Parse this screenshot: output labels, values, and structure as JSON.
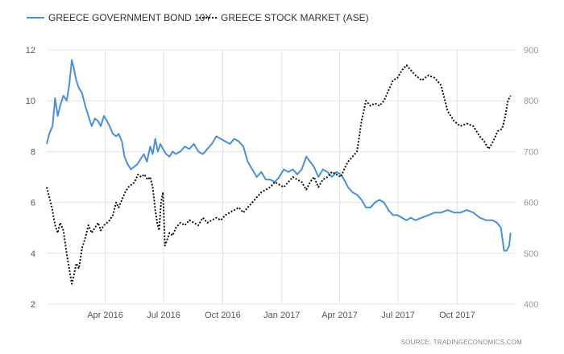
{
  "chart_data": {
    "type": "line",
    "legend_position": "top-left",
    "grid": true,
    "series": [
      {
        "name": "GREECE GOVERNMENT BOND 10Y",
        "axis": "left",
        "color": "#4a8fdc",
        "style": "solid",
        "points": [
          [
            "2016-01-01",
            8.3
          ],
          [
            "2016-01-05",
            8.7
          ],
          [
            "2016-01-10",
            9.0
          ],
          [
            "2016-01-14",
            10.1
          ],
          [
            "2016-01-18",
            9.4
          ],
          [
            "2016-01-22",
            9.8
          ],
          [
            "2016-01-27",
            10.2
          ],
          [
            "2016-02-01",
            10.0
          ],
          [
            "2016-02-05",
            10.6
          ],
          [
            "2016-02-09",
            11.6
          ],
          [
            "2016-02-12",
            11.3
          ],
          [
            "2016-02-16",
            10.8
          ],
          [
            "2016-02-20",
            10.5
          ],
          [
            "2016-02-25",
            10.3
          ],
          [
            "2016-03-01",
            9.8
          ],
          [
            "2016-03-06",
            9.4
          ],
          [
            "2016-03-11",
            9.0
          ],
          [
            "2016-03-16",
            9.3
          ],
          [
            "2016-03-21",
            9.2
          ],
          [
            "2016-03-25",
            9.0
          ],
          [
            "2016-03-30",
            9.4
          ],
          [
            "2016-04-04",
            9.2
          ],
          [
            "2016-04-08",
            9.0
          ],
          [
            "2016-04-13",
            8.7
          ],
          [
            "2016-04-18",
            8.6
          ],
          [
            "2016-04-22",
            8.7
          ],
          [
            "2016-04-27",
            8.4
          ],
          [
            "2016-05-01",
            7.8
          ],
          [
            "2016-05-06",
            7.5
          ],
          [
            "2016-05-11",
            7.3
          ],
          [
            "2016-05-16",
            7.4
          ],
          [
            "2016-05-21",
            7.5
          ],
          [
            "2016-05-26",
            7.7
          ],
          [
            "2016-05-31",
            7.9
          ],
          [
            "2016-06-05",
            7.6
          ],
          [
            "2016-06-10",
            8.2
          ],
          [
            "2016-06-14",
            7.9
          ],
          [
            "2016-06-18",
            8.5
          ],
          [
            "2016-06-22",
            8.0
          ],
          [
            "2016-06-26",
            8.3
          ],
          [
            "2016-06-30",
            8.1
          ],
          [
            "2016-07-05",
            7.9
          ],
          [
            "2016-07-10",
            7.8
          ],
          [
            "2016-07-15",
            8.0
          ],
          [
            "2016-07-20",
            7.9
          ],
          [
            "2016-07-27",
            8.0
          ],
          [
            "2016-08-03",
            8.2
          ],
          [
            "2016-08-10",
            8.1
          ],
          [
            "2016-08-17",
            8.3
          ],
          [
            "2016-08-24",
            8.0
          ],
          [
            "2016-08-31",
            7.9
          ],
          [
            "2016-09-07",
            8.1
          ],
          [
            "2016-09-14",
            8.3
          ],
          [
            "2016-09-21",
            8.6
          ],
          [
            "2016-09-28",
            8.5
          ],
          [
            "2016-10-05",
            8.4
          ],
          [
            "2016-10-12",
            8.3
          ],
          [
            "2016-10-19",
            8.5
          ],
          [
            "2016-10-26",
            8.4
          ],
          [
            "2016-11-02",
            8.2
          ],
          [
            "2016-11-09",
            7.6
          ],
          [
            "2016-11-16",
            7.3
          ],
          [
            "2016-11-23",
            7.0
          ],
          [
            "2016-11-30",
            7.2
          ],
          [
            "2016-12-07",
            6.9
          ],
          [
            "2016-12-14",
            6.9
          ],
          [
            "2016-12-21",
            6.8
          ],
          [
            "2016-12-28",
            7.0
          ],
          [
            "2017-01-04",
            7.3
          ],
          [
            "2017-01-11",
            7.2
          ],
          [
            "2017-01-18",
            7.3
          ],
          [
            "2017-01-25",
            7.1
          ],
          [
            "2017-02-01",
            7.3
          ],
          [
            "2017-02-08",
            7.8
          ],
          [
            "2017-02-14",
            7.6
          ],
          [
            "2017-02-20",
            7.4
          ],
          [
            "2017-02-27",
            7.0
          ],
          [
            "2017-03-06",
            7.3
          ],
          [
            "2017-03-13",
            7.2
          ],
          [
            "2017-03-20",
            7.0
          ],
          [
            "2017-03-27",
            7.2
          ],
          [
            "2017-04-03",
            7.1
          ],
          [
            "2017-04-08",
            6.9
          ],
          [
            "2017-04-14",
            6.6
          ],
          [
            "2017-04-21",
            6.4
          ],
          [
            "2017-04-28",
            6.3
          ],
          [
            "2017-05-05",
            6.1
          ],
          [
            "2017-05-12",
            5.8
          ],
          [
            "2017-05-19",
            5.8
          ],
          [
            "2017-05-26",
            6.0
          ],
          [
            "2017-06-02",
            6.1
          ],
          [
            "2017-06-09",
            6.0
          ],
          [
            "2017-06-16",
            5.7
          ],
          [
            "2017-06-23",
            5.5
          ],
          [
            "2017-06-30",
            5.5
          ],
          [
            "2017-07-07",
            5.4
          ],
          [
            "2017-07-14",
            5.3
          ],
          [
            "2017-07-21",
            5.4
          ],
          [
            "2017-07-28",
            5.3
          ],
          [
            "2017-08-07",
            5.4
          ],
          [
            "2017-08-17",
            5.5
          ],
          [
            "2017-08-27",
            5.6
          ],
          [
            "2017-09-06",
            5.6
          ],
          [
            "2017-09-16",
            5.7
          ],
          [
            "2017-09-26",
            5.6
          ],
          [
            "2017-10-06",
            5.6
          ],
          [
            "2017-10-16",
            5.7
          ],
          [
            "2017-10-26",
            5.6
          ],
          [
            "2017-11-05",
            5.4
          ],
          [
            "2017-11-15",
            5.3
          ],
          [
            "2017-11-25",
            5.3
          ],
          [
            "2017-12-02",
            5.2
          ],
          [
            "2017-12-08",
            5.0
          ],
          [
            "2017-12-13",
            4.1
          ],
          [
            "2017-12-17",
            4.1
          ],
          [
            "2017-12-21",
            4.3
          ],
          [
            "2017-12-23",
            4.8
          ]
        ]
      },
      {
        "name": "GREECE STOCK MARKET (ASE)",
        "axis": "right",
        "color": "#111111",
        "style": "dotted",
        "points": [
          [
            "2016-01-01",
            630
          ],
          [
            "2016-01-05",
            610
          ],
          [
            "2016-01-09",
            590
          ],
          [
            "2016-01-14",
            555
          ],
          [
            "2016-01-18",
            540
          ],
          [
            "2016-01-22",
            560
          ],
          [
            "2016-01-27",
            545
          ],
          [
            "2016-02-01",
            500
          ],
          [
            "2016-02-05",
            470
          ],
          [
            "2016-02-09",
            440
          ],
          [
            "2016-02-12",
            455
          ],
          [
            "2016-02-16",
            480
          ],
          [
            "2016-02-20",
            470
          ],
          [
            "2016-02-25",
            510
          ],
          [
            "2016-03-01",
            530
          ],
          [
            "2016-03-06",
            555
          ],
          [
            "2016-03-11",
            540
          ],
          [
            "2016-03-16",
            550
          ],
          [
            "2016-03-21",
            560
          ],
          [
            "2016-03-25",
            545
          ],
          [
            "2016-03-30",
            555
          ],
          [
            "2016-04-04",
            560
          ],
          [
            "2016-04-08",
            565
          ],
          [
            "2016-04-13",
            575
          ],
          [
            "2016-04-18",
            600
          ],
          [
            "2016-04-22",
            590
          ],
          [
            "2016-04-27",
            605
          ],
          [
            "2016-05-02",
            620
          ],
          [
            "2016-05-07",
            630
          ],
          [
            "2016-05-12",
            635
          ],
          [
            "2016-05-17",
            640
          ],
          [
            "2016-05-22",
            655
          ],
          [
            "2016-05-27",
            650
          ],
          [
            "2016-06-01",
            655
          ],
          [
            "2016-06-06",
            645
          ],
          [
            "2016-06-10",
            650
          ],
          [
            "2016-06-14",
            630
          ],
          [
            "2016-06-18",
            585
          ],
          [
            "2016-06-21",
            560
          ],
          [
            "2016-06-24",
            545
          ],
          [
            "2016-06-27",
            600
          ],
          [
            "2016-06-30",
            620
          ],
          [
            "2016-07-03",
            515
          ],
          [
            "2016-07-06",
            525
          ],
          [
            "2016-07-10",
            540
          ],
          [
            "2016-07-15",
            535
          ],
          [
            "2016-07-20",
            550
          ],
          [
            "2016-07-27",
            560
          ],
          [
            "2016-08-03",
            555
          ],
          [
            "2016-08-10",
            565
          ],
          [
            "2016-08-17",
            560
          ],
          [
            "2016-08-24",
            555
          ],
          [
            "2016-08-31",
            570
          ],
          [
            "2016-09-07",
            560
          ],
          [
            "2016-09-14",
            565
          ],
          [
            "2016-09-21",
            570
          ],
          [
            "2016-09-28",
            565
          ],
          [
            "2016-10-05",
            575
          ],
          [
            "2016-10-12",
            580
          ],
          [
            "2016-10-19",
            585
          ],
          [
            "2016-10-26",
            590
          ],
          [
            "2016-11-02",
            580
          ],
          [
            "2016-11-09",
            590
          ],
          [
            "2016-11-16",
            600
          ],
          [
            "2016-11-23",
            610
          ],
          [
            "2016-11-30",
            620
          ],
          [
            "2016-12-07",
            625
          ],
          [
            "2016-12-14",
            630
          ],
          [
            "2016-12-21",
            640
          ],
          [
            "2016-12-28",
            635
          ],
          [
            "2017-01-04",
            630
          ],
          [
            "2017-01-11",
            640
          ],
          [
            "2017-01-18",
            650
          ],
          [
            "2017-01-25",
            645
          ],
          [
            "2017-02-01",
            640
          ],
          [
            "2017-02-08",
            625
          ],
          [
            "2017-02-14",
            640
          ],
          [
            "2017-02-20",
            650
          ],
          [
            "2017-02-27",
            630
          ],
          [
            "2017-03-06",
            645
          ],
          [
            "2017-03-13",
            650
          ],
          [
            "2017-03-20",
            660
          ],
          [
            "2017-03-27",
            655
          ],
          [
            "2017-04-03",
            650
          ],
          [
            "2017-04-08",
            665
          ],
          [
            "2017-04-14",
            680
          ],
          [
            "2017-04-21",
            690
          ],
          [
            "2017-04-28",
            700
          ],
          [
            "2017-05-05",
            760
          ],
          [
            "2017-05-12",
            800
          ],
          [
            "2017-05-19",
            790
          ],
          [
            "2017-05-26",
            795
          ],
          [
            "2017-06-02",
            790
          ],
          [
            "2017-06-09",
            800
          ],
          [
            "2017-06-16",
            820
          ],
          [
            "2017-06-23",
            840
          ],
          [
            "2017-06-30",
            845
          ],
          [
            "2017-07-07",
            860
          ],
          [
            "2017-07-14",
            870
          ],
          [
            "2017-07-21",
            860
          ],
          [
            "2017-07-28",
            850
          ],
          [
            "2017-08-07",
            840
          ],
          [
            "2017-08-17",
            850
          ],
          [
            "2017-08-27",
            845
          ],
          [
            "2017-09-06",
            830
          ],
          [
            "2017-09-16",
            780
          ],
          [
            "2017-09-26",
            760
          ],
          [
            "2017-10-06",
            750
          ],
          [
            "2017-10-16",
            755
          ],
          [
            "2017-10-26",
            750
          ],
          [
            "2017-11-05",
            730
          ],
          [
            "2017-11-12",
            720
          ],
          [
            "2017-11-19",
            705
          ],
          [
            "2017-11-26",
            720
          ],
          [
            "2017-12-03",
            740
          ],
          [
            "2017-12-10",
            745
          ],
          [
            "2017-12-15",
            770
          ],
          [
            "2017-12-19",
            800
          ],
          [
            "2017-12-23",
            810
          ]
        ]
      }
    ],
    "y_left": {
      "ticks": [
        2,
        4,
        6,
        8,
        10,
        12
      ],
      "range": [
        2,
        12
      ]
    },
    "y_right": {
      "ticks": [
        400,
        500,
        600,
        700,
        800,
        900
      ],
      "range": [
        400,
        900
      ]
    },
    "x": {
      "range": [
        "2016-01-01",
        "2017-12-31"
      ],
      "ticks": [
        {
          "date": "2016-04-01",
          "label": "Apr 2016"
        },
        {
          "date": "2016-07-01",
          "label": "Jul 2016"
        },
        {
          "date": "2016-10-01",
          "label": "Oct 2016"
        },
        {
          "date": "2017-01-01",
          "label": "Jan 2017"
        },
        {
          "date": "2017-04-01",
          "label": "Apr 2017"
        },
        {
          "date": "2017-07-01",
          "label": "Jul 2017"
        },
        {
          "date": "2017-10-01",
          "label": "Oct 2017"
        }
      ]
    },
    "source": "SOURCE: TRADINGECONOMICS.COM"
  }
}
